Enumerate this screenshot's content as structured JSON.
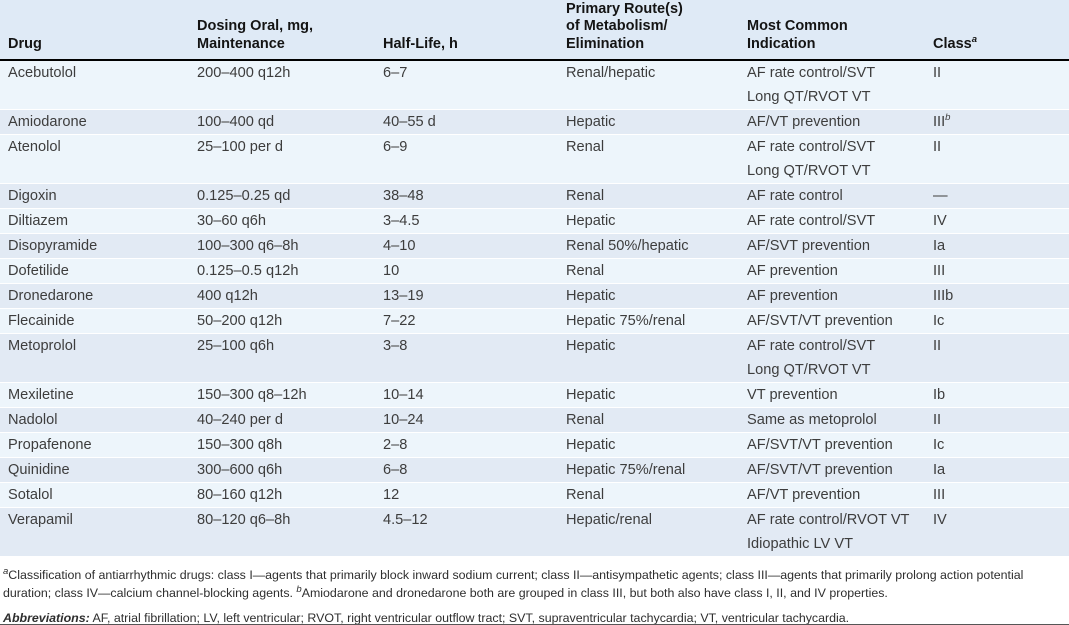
{
  "colors": {
    "header_bg": "#dfeaf6",
    "row_light": "#edf5fb",
    "row_dark": "#e2eaf4"
  },
  "table": {
    "columns": [
      {
        "name": "drug",
        "label_lines": [
          "Drug"
        ]
      },
      {
        "name": "dosing",
        "label_lines": [
          "Dosing Oral, mg,",
          "Maintenance"
        ]
      },
      {
        "name": "half_life",
        "label_lines": [
          "Half-Life, h"
        ]
      },
      {
        "name": "route",
        "label_lines": [
          "Primary Route(s)",
          "of Metabolism/",
          "Elimination"
        ]
      },
      {
        "name": "indication",
        "label_lines": [
          "Most Common",
          "Indication"
        ]
      },
      {
        "name": "class",
        "label_lines": [
          "Class"
        ],
        "sup": "a"
      }
    ],
    "rows": [
      {
        "drug": "Acebutolol",
        "dosing": "200–400 q12h",
        "half_life": "6–7",
        "route": "Renal/hepatic",
        "indications": [
          "AF rate control/SVT",
          "Long QT/RVOT VT"
        ],
        "class_base": "II",
        "class_sup": ""
      },
      {
        "drug": "Amiodarone",
        "dosing": "100–400 qd",
        "half_life": "40–55 d",
        "route": "Hepatic",
        "indications": [
          "AF/VT prevention"
        ],
        "class_base": "III",
        "class_sup": "b"
      },
      {
        "drug": "Atenolol",
        "dosing": "25–100 per d",
        "half_life": "6–9",
        "route": "Renal",
        "indications": [
          "AF rate control/SVT",
          "Long QT/RVOT VT"
        ],
        "class_base": "II",
        "class_sup": ""
      },
      {
        "drug": "Digoxin",
        "dosing": "0.125–0.25 qd",
        "half_life": "38–48",
        "route": "Renal",
        "indications": [
          "AF rate control"
        ],
        "class_base": "—",
        "class_sup": ""
      },
      {
        "drug": "Diltiazem",
        "dosing": "30–60 q6h",
        "half_life": "3–4.5",
        "route": "Hepatic",
        "indications": [
          "AF rate control/SVT"
        ],
        "class_base": "IV",
        "class_sup": ""
      },
      {
        "drug": "Disopyramide",
        "dosing": "100–300 q6–8h",
        "half_life": "4–10",
        "route": "Renal 50%/hepatic",
        "indications": [
          "AF/SVT prevention"
        ],
        "class_base": "Ia",
        "class_sup": ""
      },
      {
        "drug": "Dofetilide",
        "dosing": "0.125–0.5 q12h",
        "half_life": "10",
        "route": "Renal",
        "indications": [
          "AF prevention"
        ],
        "class_base": "III",
        "class_sup": ""
      },
      {
        "drug": "Dronedarone",
        "dosing": "400 q12h",
        "half_life": "13–19",
        "route": "Hepatic",
        "indications": [
          "AF prevention"
        ],
        "class_base": "IIIb",
        "class_sup": ""
      },
      {
        "drug": "Flecainide",
        "dosing": "50–200 q12h",
        "half_life": "7–22",
        "route": "Hepatic 75%/renal",
        "indications": [
          "AF/SVT/VT prevention"
        ],
        "class_base": "Ic",
        "class_sup": ""
      },
      {
        "drug": "Metoprolol",
        "dosing": "25–100 q6h",
        "half_life": "3–8",
        "route": "Hepatic",
        "indications": [
          "AF rate control/SVT",
          "Long QT/RVOT VT"
        ],
        "class_base": "II",
        "class_sup": ""
      },
      {
        "drug": "Mexiletine",
        "dosing": "150–300 q8–12h",
        "half_life": "10–14",
        "route": "Hepatic",
        "indications": [
          "VT prevention"
        ],
        "class_base": "Ib",
        "class_sup": ""
      },
      {
        "drug": "Nadolol",
        "dosing": "40–240 per d",
        "half_life": "10–24",
        "route": "Renal",
        "indications": [
          "Same as metoprolol"
        ],
        "class_base": "II",
        "class_sup": ""
      },
      {
        "drug": "Propafenone",
        "dosing": "150–300 q8h",
        "half_life": "2–8",
        "route": "Hepatic",
        "indications": [
          "AF/SVT/VT prevention"
        ],
        "class_base": "Ic",
        "class_sup": ""
      },
      {
        "drug": "Quinidine",
        "dosing": "300–600 q6h",
        "half_life": "6–8",
        "route": "Hepatic 75%/renal",
        "indications": [
          "AF/SVT/VT prevention"
        ],
        "class_base": "Ia",
        "class_sup": ""
      },
      {
        "drug": "Sotalol",
        "dosing": "80–160 q12h",
        "half_life": "12",
        "route": "Renal",
        "indications": [
          "AF/VT prevention"
        ],
        "class_base": "III",
        "class_sup": ""
      },
      {
        "drug": "Verapamil",
        "dosing": "80–120 q6–8h",
        "half_life": "4.5–12",
        "route": "Hepatic/renal",
        "indications": [
          "AF rate control/RVOT VT",
          "Idiopathic LV VT"
        ],
        "class_base": "IV",
        "class_sup": ""
      }
    ]
  },
  "footnotes": {
    "classification": {
      "sup_a": "a",
      "text_part1": "Classification of antiarrhythmic drugs: class I—agents that primarily block inward sodium current; class II—antisympathetic agents; class III—agents that primarily prolong action potential duration; class IV—calcium channel-blocking agents. ",
      "sup_b": "b",
      "text_part2": "Amiodarone and dronedarone both are grouped in class III, but both also have class I, II, and IV properties."
    },
    "abbreviations": {
      "label": "Abbreviations:",
      "text": " AF, atrial fibrillation; LV, left ventricular; RVOT, right ventricular outflow tract; SVT, supraventricular tachycardia; VT, ventricular tachycardia."
    }
  }
}
